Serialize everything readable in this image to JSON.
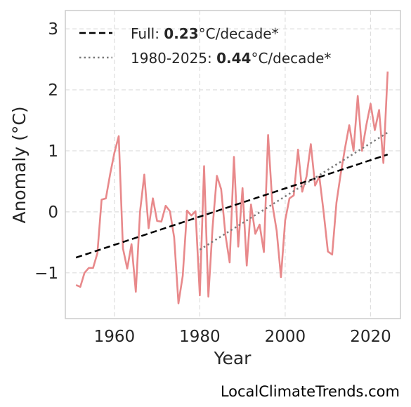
{
  "chart_data": {
    "type": "line",
    "xlabel": "Year",
    "ylabel": "Anomaly (°C)",
    "xlim": [
      1948.5,
      2027
    ],
    "ylim": [
      -1.75,
      3.3
    ],
    "xticks": [
      1960,
      1980,
      2000,
      2020
    ],
    "yticks": [
      -1,
      0,
      1,
      2,
      3
    ],
    "ytick_labels": [
      "−1",
      "0",
      "1",
      "2",
      "3"
    ],
    "grid": true,
    "legend_position": "top-left",
    "series": [
      {
        "color": "#e8898b",
        "x": [
          1951,
          1952,
          1953,
          1954,
          1955,
          1956,
          1957,
          1958,
          1959,
          1960,
          1961,
          1962,
          1963,
          1964,
          1965,
          1966,
          1967,
          1968,
          1969,
          1970,
          1971,
          1972,
          1973,
          1974,
          1975,
          1976,
          1977,
          1978,
          1979,
          1980,
          1981,
          1982,
          1983,
          1984,
          1985,
          1986,
          1987,
          1988,
          1989,
          1990,
          1991,
          1992,
          1993,
          1994,
          1995,
          1996,
          1997,
          1998,
          1999,
          2000,
          2001,
          2002,
          2003,
          2004,
          2005,
          2006,
          2007,
          2008,
          2009,
          2010,
          2011,
          2012,
          2013,
          2014,
          2015,
          2016,
          2017,
          2018,
          2019,
          2020,
          2021,
          2022,
          2023,
          2024
        ],
        "values": [
          -1.2,
          -1.23,
          -1.0,
          -0.92,
          -0.92,
          -0.68,
          0.2,
          0.22,
          0.62,
          0.97,
          1.24,
          -0.6,
          -0.93,
          -0.53,
          -1.31,
          0.0,
          0.61,
          -0.27,
          0.22,
          -0.15,
          -0.16,
          0.1,
          0.01,
          -0.42,
          -1.5,
          -1.05,
          0.02,
          -0.06,
          0.01,
          -1.37,
          0.75,
          -1.39,
          -0.25,
          0.59,
          0.37,
          -0.38,
          -0.83,
          0.9,
          -0.57,
          0.39,
          -0.88,
          0.12,
          -0.36,
          -0.21,
          -0.66,
          1.26,
          0.12,
          -0.31,
          -1.07,
          -0.14,
          0.22,
          0.27,
          1.02,
          0.33,
          0.58,
          1.11,
          0.43,
          0.58,
          0.0,
          -0.65,
          -0.7,
          0.15,
          0.62,
          1.04,
          1.42,
          1.0,
          1.9,
          1.0,
          1.42,
          1.77,
          1.34,
          1.67,
          0.8,
          2.3
        ]
      }
    ],
    "trend_lines": [
      {
        "label_prefix": "Full: ",
        "label_value": "0.23",
        "label_suffix": "°C/decade*",
        "style": "dashed",
        "color": "#000000",
        "x": [
          1951,
          2024
        ],
        "y": [
          -0.75,
          0.94
        ]
      },
      {
        "label_prefix": "1980-2025: ",
        "label_value": "0.44",
        "label_suffix": "°C/decade*",
        "style": "dotted",
        "color": "#7b7b7b",
        "x": [
          1980,
          2024
        ],
        "y": [
          -0.62,
          1.3
        ]
      }
    ]
  },
  "footer": "LocalClimateTrends.com"
}
